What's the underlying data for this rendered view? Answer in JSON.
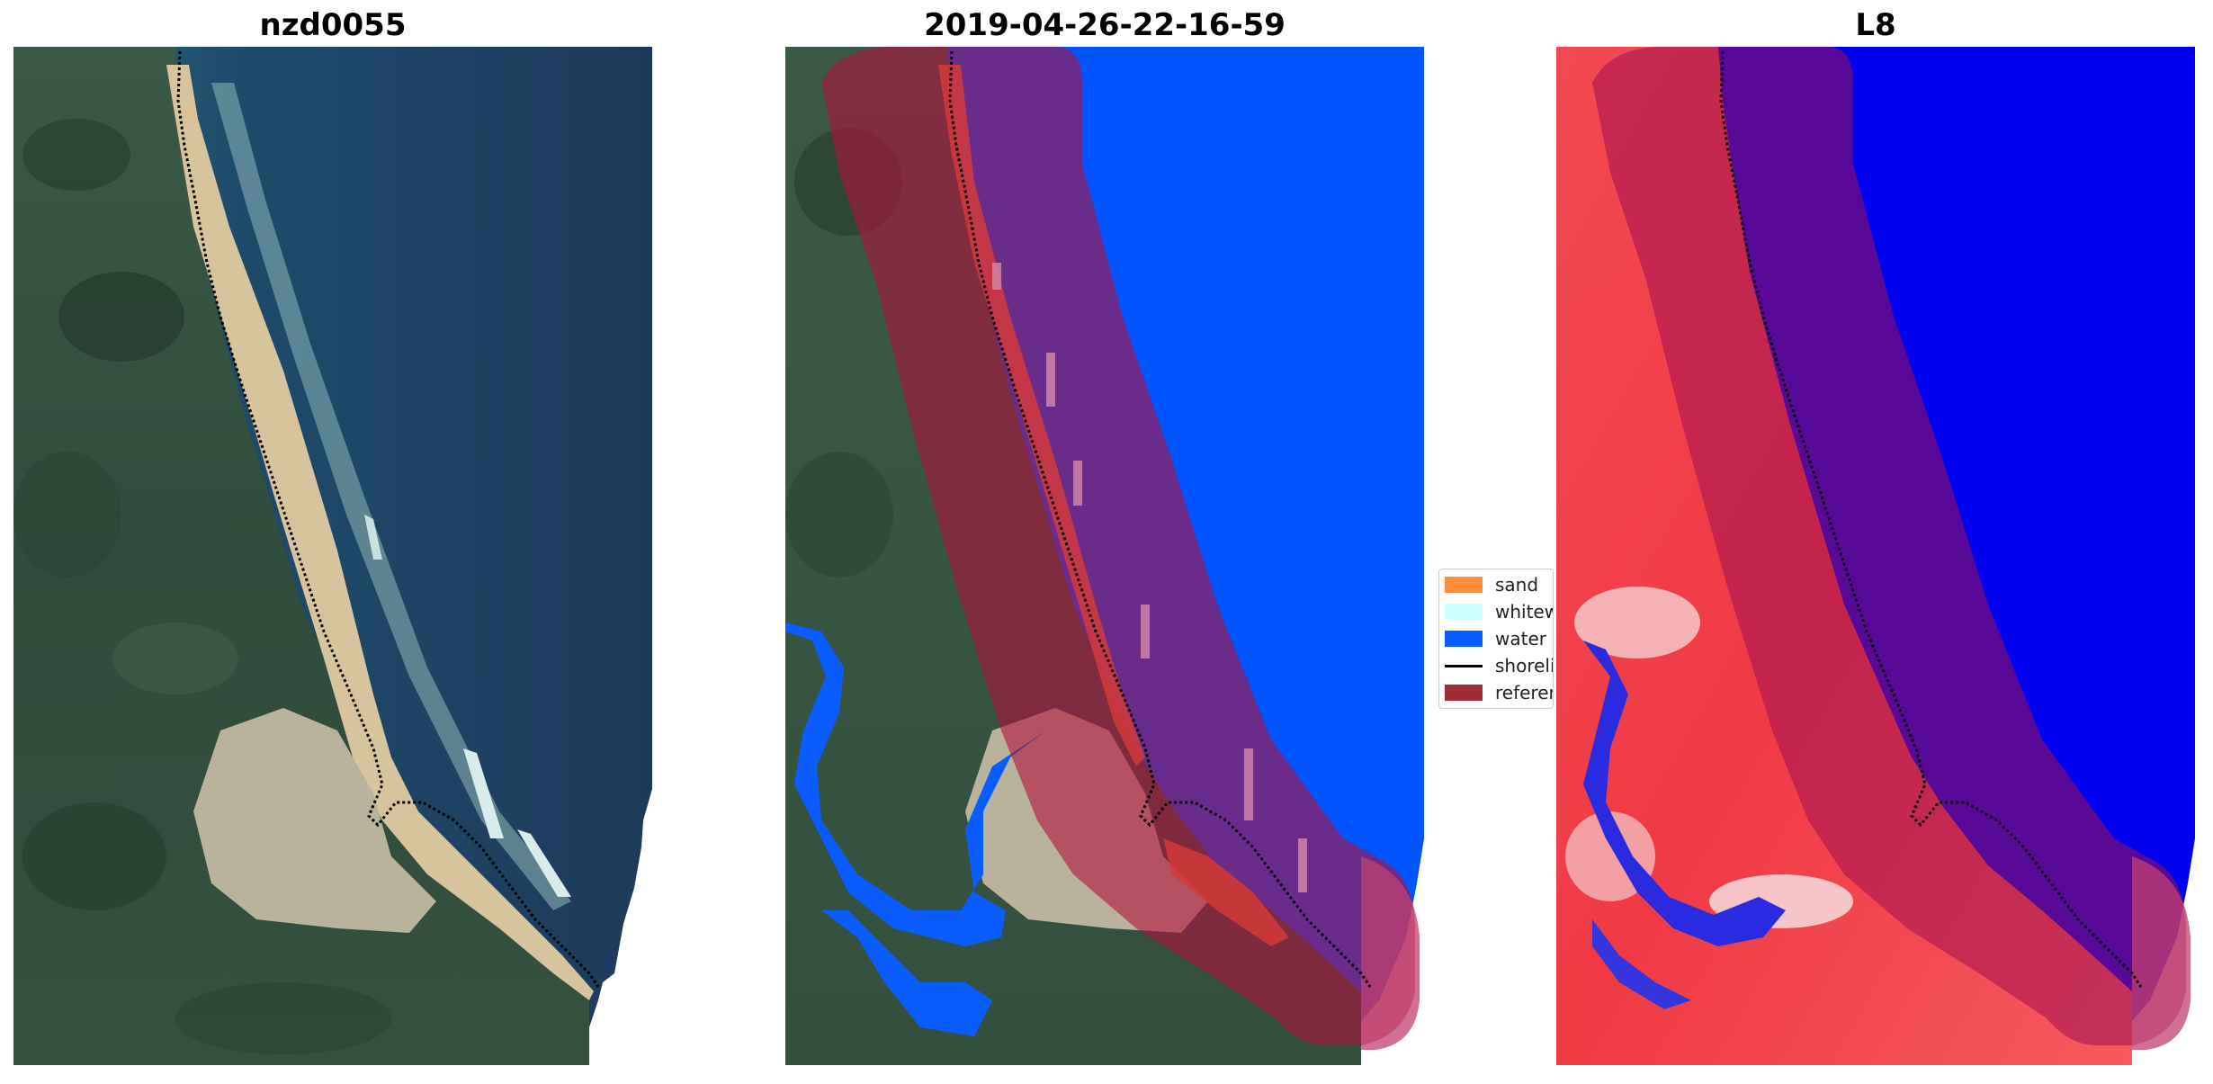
{
  "panels": [
    {
      "title": "nzd0055"
    },
    {
      "title": "2019-04-26-22-16-59"
    },
    {
      "title": "L8"
    }
  ],
  "legend": {
    "items": [
      {
        "label": "sand",
        "color": "#ff8f3a",
        "kind": "patch"
      },
      {
        "label": "whitewater",
        "color": "#ccffff",
        "kind": "patch"
      },
      {
        "label": "water",
        "color": "#0a5cff",
        "kind": "patch"
      },
      {
        "label": "shoreline",
        "color": "#000000",
        "kind": "line"
      },
      {
        "label": "reference shoreline buffer",
        "color": "#9e2b36",
        "kind": "patch"
      }
    ]
  },
  "colors": {
    "deep_water": "#1d3a5c",
    "classified_water": "#0055ff",
    "buffer": "#b0103d",
    "index_land": "#f23a44",
    "index_water": "#0000f0"
  }
}
